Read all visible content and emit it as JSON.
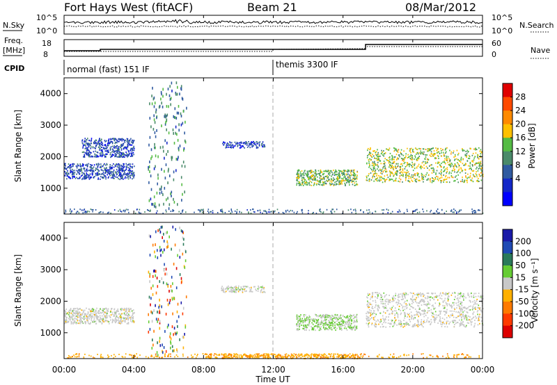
{
  "header": {
    "title": "Fort Hays West (fitACF)",
    "beam": "Beam 21",
    "date": "08/Mar/2012"
  },
  "status": {
    "nsky_label": "N.Sky",
    "nsky_ticks": [
      "10^5",
      "10^0"
    ],
    "nsearch_label": "N.Search",
    "freq_label": "Freq.",
    "freq_unit": "[MHz]",
    "freq_ticks": [
      "18",
      "8"
    ],
    "nave_label": "Nave",
    "nave_ticks": [
      "60",
      "0"
    ],
    "cpid_label": "CPID",
    "cpid_segments": [
      {
        "label": "normal (fast) 151 IF",
        "start_hour": 0
      },
      {
        "label": "themis 3300 IF",
        "start_hour": 12
      }
    ]
  },
  "colorbars": {
    "power": {
      "label": "Power [dB]",
      "ticks": [
        "28",
        "24",
        "20",
        "16",
        "12",
        "8",
        "4"
      ],
      "colors": [
        "#e00000",
        "#ff4a00",
        "#ff8a00",
        "#ffc000",
        "#55bb44",
        "#4a8a6a",
        "#2f5aa0",
        "#1428c8",
        "#0000ff"
      ]
    },
    "velocity": {
      "label": "Velocity [m s⁻¹]",
      "ticks": [
        "200",
        "100",
        "50",
        "15",
        "-15",
        "-50",
        "-100",
        "-200"
      ],
      "colors": [
        "#1a1aa8",
        "#1f4ab4",
        "#2a7a5a",
        "#66cc33",
        "#c8c8c8",
        "#ffb000",
        "#ff7a00",
        "#ff3a00",
        "#dd0000"
      ]
    }
  },
  "axes": {
    "ylabel": "Slant Range [km]",
    "xlabel": "Time UT",
    "xticks": [
      "00:00",
      "04:00",
      "08:00",
      "12:00",
      "16:00",
      "20:00",
      "00:00"
    ],
    "yticks": [
      "4000",
      "3000",
      "2000",
      "1000"
    ]
  },
  "chart_data": [
    {
      "type": "heatmap",
      "panel": "power",
      "x_range_hours": [
        0,
        24
      ],
      "y_range_km": [
        180,
        4500
      ],
      "x_ticks": [
        "00:00",
        "04:00",
        "08:00",
        "12:00",
        "16:00",
        "20:00",
        "00:00"
      ],
      "y_ticks": [
        1000,
        2000,
        3000,
        4000
      ],
      "ylabel": "Slant Range [km]",
      "colorbar": "Power [dB]",
      "color_range": [
        0,
        30
      ],
      "regions": [
        {
          "t0": 0.0,
          "t1": 4.0,
          "r0": 1300,
          "r1": 1800,
          "power": 6
        },
        {
          "t0": 1.0,
          "t1": 4.0,
          "r0": 2000,
          "r1": 2600,
          "power": 6
        },
        {
          "t0": 4.8,
          "t1": 7.0,
          "r0": 300,
          "r1": 4400,
          "power": 10,
          "sparse": true
        },
        {
          "t0": 9.0,
          "t1": 11.5,
          "r0": 2300,
          "r1": 2500,
          "power": 5
        },
        {
          "t0": 13.3,
          "t1": 16.8,
          "r0": 1100,
          "r1": 1600,
          "power": 14
        },
        {
          "t0": 17.3,
          "t1": 24.0,
          "r0": 1200,
          "r1": 2300,
          "power": 16
        }
      ]
    },
    {
      "type": "heatmap",
      "panel": "velocity",
      "x_range_hours": [
        0,
        24
      ],
      "y_range_km": [
        180,
        4500
      ],
      "x_ticks": [
        "00:00",
        "04:00",
        "08:00",
        "12:00",
        "16:00",
        "20:00",
        "00:00"
      ],
      "y_ticks": [
        1000,
        2000,
        3000,
        4000
      ],
      "ylabel": "Slant Range [km]",
      "xlabel": "Time UT",
      "colorbar": "Velocity [m s⁻¹]",
      "color_range": [
        -200,
        200
      ],
      "regions": [
        {
          "t0": 0.0,
          "t1": 4.0,
          "r0": 1300,
          "r1": 1800,
          "velocity": 0
        },
        {
          "t0": 4.8,
          "t1": 7.0,
          "r0": 300,
          "r1": 4400,
          "velocity": 0,
          "sparse": true
        },
        {
          "t0": 9.0,
          "t1": 11.5,
          "r0": 2300,
          "r1": 2500,
          "velocity": 0
        },
        {
          "t0": 13.3,
          "t1": 16.8,
          "r0": 1100,
          "r1": 1600,
          "velocity": 30
        },
        {
          "t0": 17.3,
          "t1": 24.0,
          "r0": 1200,
          "r1": 2300,
          "velocity": 0
        },
        {
          "t0": 8.0,
          "t1": 17.0,
          "r0": 200,
          "r1": 350,
          "velocity": -60
        }
      ]
    }
  ]
}
